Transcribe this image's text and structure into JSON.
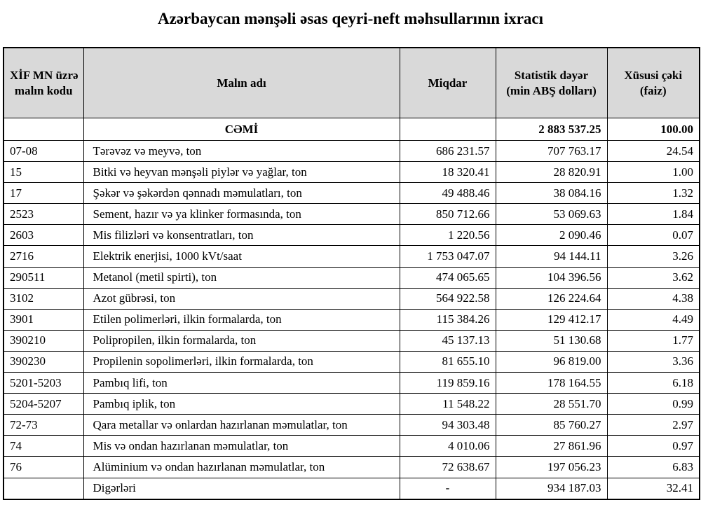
{
  "title": "Azərbaycan mənşəli əsas qeyri-neft məhsullarının ixracı",
  "headers": {
    "code": [
      "XİF MN üzrə",
      "malın kodu"
    ],
    "name": "Malın adı",
    "quantity": "Miqdar",
    "value": [
      "Statistik dəyər",
      "(min ABŞ dolları)"
    ],
    "share": [
      "Xüsusi çəki",
      "(faiz)"
    ]
  },
  "total": {
    "label": "CƏMİ",
    "value": "2 883 537.25",
    "share": "100.00"
  },
  "rows": [
    {
      "code": "07-08",
      "name": "Tərəvəz və meyvə, ton",
      "quantity": "686 231.57",
      "value": "707 763.17",
      "share": "24.54"
    },
    {
      "code": "15",
      "name": "Bitki və heyvan mənşəli piylər və yağlar, ton",
      "quantity": "18 320.41",
      "value": "28 820.91",
      "share": "1.00"
    },
    {
      "code": "17",
      "name": "Şəkər və şəkərdən qənnadı məmulatları, ton",
      "quantity": "49 488.46",
      "value": "38 084.16",
      "share": "1.32"
    },
    {
      "code": "2523",
      "name": "Sement, hazır və ya klinker formasında, ton",
      "quantity": "850 712.66",
      "value": "53 069.63",
      "share": "1.84"
    },
    {
      "code": "2603",
      "name": "Mis filizləri və konsentratları, ton",
      "quantity": "1 220.56",
      "value": "2 090.46",
      "share": "0.07"
    },
    {
      "code": "2716",
      "name": "Elektrik enerjisi, 1000 kVt/saat",
      "quantity": "1 753 047.07",
      "value": "94 144.11",
      "share": "3.26"
    },
    {
      "code": "290511",
      "name": "Metanol (metil spirti), ton",
      "quantity": "474 065.65",
      "value": "104 396.56",
      "share": "3.62"
    },
    {
      "code": "3102",
      "name": "Azot gübrəsi, ton",
      "quantity": "564 922.58",
      "value": "126 224.64",
      "share": "4.38"
    },
    {
      "code": "3901",
      "name": "Etilen polimerləri, ilkin formalarda, ton",
      "quantity": "115 384.26",
      "value": "129 412.17",
      "share": "4.49"
    },
    {
      "code": "390210",
      "name": "Polipropilen, ilkin formalarda, ton",
      "quantity": "45 137.13",
      "value": "51 130.68",
      "share": "1.77"
    },
    {
      "code": "390230",
      "name": "Propilenin sopolimerləri, ilkin formalarda, ton",
      "quantity": "81 655.10",
      "value": "96 819.00",
      "share": "3.36"
    },
    {
      "code": "5201-5203",
      "name": "Pambıq lifi, ton",
      "quantity": "119 859.16",
      "value": "178 164.55",
      "share": "6.18"
    },
    {
      "code": "5204-5207",
      "name": "Pambıq iplik, ton",
      "quantity": "11 548.22",
      "value": "28 551.70",
      "share": "0.99"
    },
    {
      "code": "72-73",
      "name": "Qara metallar və onlardan hazırlanan məmulatlar, ton",
      "quantity": "94 303.48",
      "value": "85 760.27",
      "share": "2.97"
    },
    {
      "code": "74",
      "name": "Mis və ondan hazırlanan məmulatlar, ton",
      "quantity": "4 010.06",
      "value": "27 861.96",
      "share": "0.97"
    },
    {
      "code": "76",
      "name": "Alüminium və ondan hazırlanan məmulatlar, ton",
      "quantity": "72 638.67",
      "value": "197 056.23",
      "share": "6.83"
    },
    {
      "code": "",
      "name": "Digərləri",
      "quantity": "-",
      "value": "934 187.03",
      "share": "32.41"
    }
  ],
  "colors": {
    "header_bg": "#d9d9d9",
    "border": "#000000"
  }
}
